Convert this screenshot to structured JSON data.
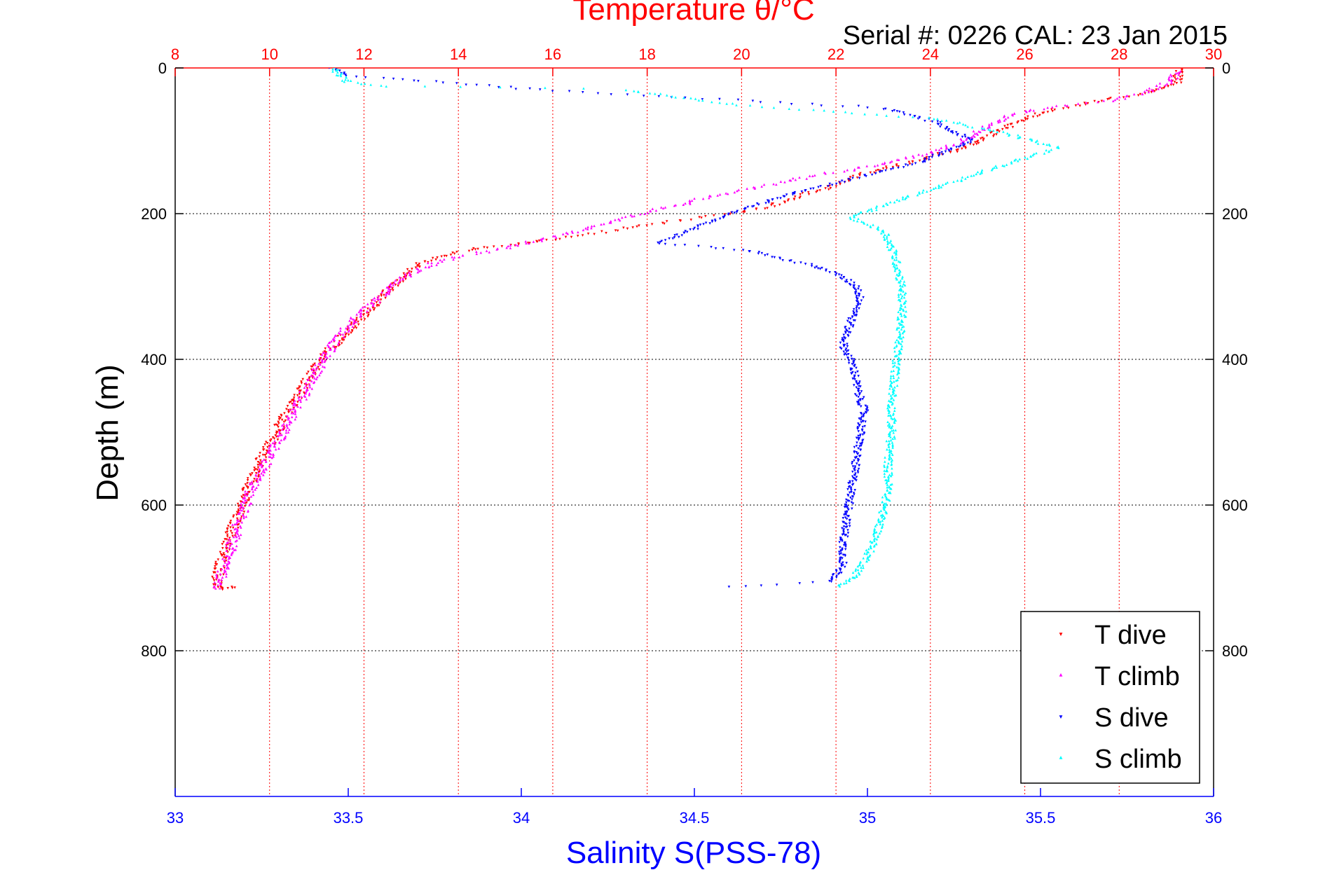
{
  "chart_data": {
    "type": "scatter",
    "title": "Temperature θ/°C",
    "subtitle": "Serial #: 0226  CAL: 23 Jan 2015",
    "ylabel": "Depth (m)",
    "xlabel": "Salinity S(PSS-78)",
    "y_axis": {
      "min": 0,
      "max": 1000,
      "reversed": true,
      "ticks": [
        0,
        200,
        400,
        600,
        800
      ],
      "tick_labels": [
        "0",
        "200",
        "400",
        "600",
        "800"
      ]
    },
    "temperature_axis": {
      "position": "top",
      "min": 8,
      "max": 30,
      "ticks": [
        8,
        10,
        12,
        14,
        16,
        18,
        20,
        22,
        24,
        26,
        28,
        30
      ],
      "tick_labels": [
        "8",
        "10",
        "12",
        "14",
        "16",
        "18",
        "20",
        "22",
        "24",
        "26",
        "28",
        "30"
      ],
      "color": "#ff0000"
    },
    "salinity_axis": {
      "position": "bottom",
      "min": 33,
      "max": 36,
      "ticks": [
        33,
        33.5,
        34,
        34.5,
        35,
        35.5,
        36
      ],
      "tick_labels": [
        "33",
        "33.5",
        "34",
        "34.5",
        "35",
        "35.5",
        "36"
      ],
      "color": "#0000ff"
    },
    "grid": true,
    "legend": {
      "position": "bottom-right"
    },
    "series": [
      {
        "name": "T dive",
        "axis": "temperature",
        "marker": "triangle-down",
        "color": "#ff0000",
        "points": [
          [
            29.3,
            0
          ],
          [
            29.2,
            20
          ],
          [
            28.6,
            35
          ],
          [
            27.8,
            42
          ],
          [
            26.8,
            55
          ],
          [
            26.2,
            65
          ],
          [
            25.8,
            75
          ],
          [
            25.5,
            85
          ],
          [
            25.2,
            95
          ],
          [
            24.9,
            105
          ],
          [
            24.6,
            112
          ],
          [
            24.2,
            118
          ],
          [
            23.8,
            125
          ],
          [
            23.4,
            132
          ],
          [
            23.0,
            138
          ],
          [
            22.6,
            145
          ],
          [
            22.2,
            155
          ],
          [
            21.8,
            165
          ],
          [
            21.4,
            172
          ],
          [
            21.0,
            180
          ],
          [
            20.6,
            190
          ],
          [
            20.0,
            198
          ],
          [
            19.2,
            205
          ],
          [
            18.4,
            212
          ],
          [
            17.6,
            220
          ],
          [
            16.8,
            228
          ],
          [
            16.0,
            235
          ],
          [
            15.4,
            240
          ],
          [
            14.8,
            245
          ],
          [
            14.2,
            250
          ],
          [
            13.7,
            257
          ],
          [
            13.3,
            265
          ],
          [
            13.0,
            278
          ],
          [
            12.8,
            290
          ],
          [
            12.5,
            305
          ],
          [
            12.2,
            325
          ],
          [
            11.9,
            345
          ],
          [
            11.6,
            365
          ],
          [
            11.3,
            385
          ],
          [
            11.0,
            410
          ],
          [
            10.7,
            440
          ],
          [
            10.4,
            470
          ],
          [
            10.1,
            505
          ],
          [
            9.8,
            540
          ],
          [
            9.6,
            570
          ],
          [
            9.4,
            600
          ],
          [
            9.2,
            635
          ],
          [
            9.0,
            670
          ],
          [
            8.9,
            700
          ],
          [
            8.9,
            715
          ],
          [
            9.2,
            712
          ]
        ]
      },
      {
        "name": "T climb",
        "axis": "temperature",
        "marker": "triangle-up",
        "color": "#ff00ff",
        "points": [
          [
            8.9,
            715
          ],
          [
            9.0,
            690
          ],
          [
            9.2,
            655
          ],
          [
            9.4,
            615
          ],
          [
            9.6,
            580
          ],
          [
            9.9,
            545
          ],
          [
            10.2,
            510
          ],
          [
            10.5,
            475
          ],
          [
            10.8,
            440
          ],
          [
            11.1,
            405
          ],
          [
            11.4,
            375
          ],
          [
            11.8,
            345
          ],
          [
            12.2,
            322
          ],
          [
            12.6,
            300
          ],
          [
            13.0,
            282
          ],
          [
            13.5,
            268
          ],
          [
            14.1,
            258
          ],
          [
            14.8,
            250
          ],
          [
            15.6,
            238
          ],
          [
            16.4,
            226
          ],
          [
            17.2,
            212
          ],
          [
            18.0,
            198
          ],
          [
            18.8,
            186
          ],
          [
            19.4,
            175
          ],
          [
            20.0,
            168
          ],
          [
            20.8,
            158
          ],
          [
            21.5,
            148
          ],
          [
            22.3,
            140
          ],
          [
            23.1,
            130
          ],
          [
            23.8,
            120
          ],
          [
            24.4,
            108
          ],
          [
            24.8,
            95
          ],
          [
            25.2,
            80
          ],
          [
            25.6,
            68
          ],
          [
            26.1,
            58
          ],
          [
            26.8,
            52
          ],
          [
            27.8,
            45
          ],
          [
            28.5,
            35
          ],
          [
            29.0,
            20
          ],
          [
            29.3,
            5
          ]
        ]
      },
      {
        "name": "S dive",
        "axis": "salinity",
        "marker": "triangle-down",
        "color": "#0000ff",
        "points": [
          [
            33.45,
            0
          ],
          [
            33.5,
            10
          ],
          [
            34.05,
            30
          ],
          [
            35.05,
            55
          ],
          [
            35.2,
            75
          ],
          [
            35.3,
            100
          ],
          [
            35.15,
            130
          ],
          [
            34.8,
            170
          ],
          [
            34.6,
            200
          ],
          [
            34.4,
            240
          ],
          [
            34.65,
            250
          ],
          [
            34.75,
            262
          ],
          [
            34.85,
            272
          ],
          [
            34.92,
            285
          ],
          [
            34.97,
            300
          ],
          [
            34.98,
            320
          ],
          [
            34.95,
            350
          ],
          [
            34.93,
            380
          ],
          [
            34.96,
            410
          ],
          [
            34.97,
            440
          ],
          [
            34.99,
            470
          ],
          [
            34.98,
            500
          ],
          [
            34.97,
            530
          ],
          [
            34.96,
            560
          ],
          [
            34.95,
            590
          ],
          [
            34.94,
            620
          ],
          [
            34.93,
            650
          ],
          [
            34.93,
            680
          ],
          [
            34.9,
            705
          ],
          [
            34.6,
            712
          ]
        ]
      },
      {
        "name": "S climb",
        "axis": "salinity",
        "marker": "triangle-up",
        "color": "#00ffff",
        "points": [
          [
            33.45,
            0
          ],
          [
            33.5,
            20
          ],
          [
            33.6,
            25
          ],
          [
            34.3,
            30
          ],
          [
            34.6,
            50
          ],
          [
            35.2,
            70
          ],
          [
            35.4,
            90
          ],
          [
            35.55,
            110
          ],
          [
            35.35,
            140
          ],
          [
            35.1,
            180
          ],
          [
            34.95,
            205
          ],
          [
            35.05,
            225
          ],
          [
            35.08,
            260
          ],
          [
            35.1,
            300
          ],
          [
            35.1,
            340
          ],
          [
            35.09,
            380
          ],
          [
            35.08,
            420
          ],
          [
            35.07,
            460
          ],
          [
            35.07,
            500
          ],
          [
            35.06,
            540
          ],
          [
            35.06,
            580
          ],
          [
            35.04,
            620
          ],
          [
            35.02,
            650
          ],
          [
            34.99,
            680
          ],
          [
            34.96,
            700
          ],
          [
            34.92,
            712
          ]
        ]
      }
    ]
  }
}
